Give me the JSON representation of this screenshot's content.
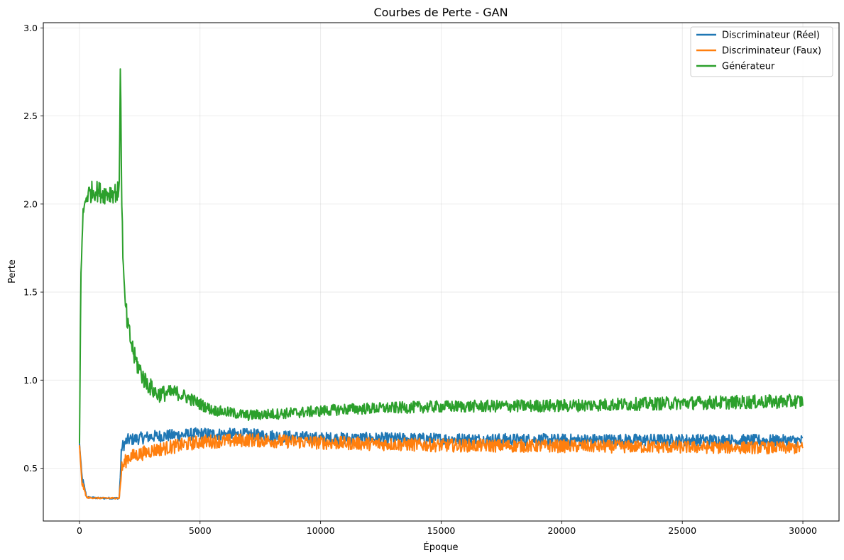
{
  "chart_data": {
    "type": "line",
    "title": "Courbes de Perte - GAN",
    "xlabel": "Époque",
    "ylabel": "Perte",
    "xlim": [
      -1500,
      31500
    ],
    "ylim": [
      0.2,
      3.03
    ],
    "x_ticks": [
      0,
      5000,
      10000,
      15000,
      20000,
      25000,
      30000
    ],
    "x_tick_labels": [
      "0",
      "5000",
      "10000",
      "15000",
      "20000",
      "25000",
      "30000"
    ],
    "y_ticks": [
      0.5,
      1.0,
      1.5,
      2.0,
      2.5,
      3.0
    ],
    "y_tick_labels": [
      "0.5",
      "1.0",
      "1.5",
      "2.0",
      "2.5",
      "3.0"
    ],
    "grid": true,
    "legend_position": "top-right",
    "series": [
      {
        "name": "Discriminateur (Réel)",
        "color": "#1f77b4",
        "points": [
          [
            0,
            0.64
          ],
          [
            100,
            0.45
          ],
          [
            300,
            0.335
          ],
          [
            800,
            0.33
          ],
          [
            1650,
            0.33
          ],
          [
            1750,
            0.62
          ],
          [
            2000,
            0.66
          ],
          [
            3000,
            0.68
          ],
          [
            5000,
            0.695
          ],
          [
            7000,
            0.69
          ],
          [
            10000,
            0.67
          ],
          [
            15000,
            0.665
          ],
          [
            20000,
            0.66
          ],
          [
            25000,
            0.66
          ],
          [
            30000,
            0.655
          ]
        ],
        "noise": [
          [
            0,
            0.0
          ],
          [
            100,
            0.02
          ],
          [
            300,
            0.005
          ],
          [
            1650,
            0.005
          ],
          [
            1750,
            0.035
          ],
          [
            30000,
            0.035
          ]
        ]
      },
      {
        "name": "Discriminateur (Faux)",
        "color": "#ff7f0e",
        "points": [
          [
            0,
            0.63
          ],
          [
            100,
            0.42
          ],
          [
            300,
            0.333
          ],
          [
            800,
            0.33
          ],
          [
            1650,
            0.33
          ],
          [
            1750,
            0.5
          ],
          [
            2000,
            0.56
          ],
          [
            3000,
            0.6
          ],
          [
            5000,
            0.65
          ],
          [
            7000,
            0.66
          ],
          [
            10000,
            0.645
          ],
          [
            15000,
            0.63
          ],
          [
            20000,
            0.625
          ],
          [
            25000,
            0.62
          ],
          [
            30000,
            0.615
          ]
        ],
        "noise": [
          [
            0,
            0.0
          ],
          [
            100,
            0.02
          ],
          [
            300,
            0.004
          ],
          [
            1650,
            0.004
          ],
          [
            1750,
            0.04
          ],
          [
            30000,
            0.035
          ]
        ]
      },
      {
        "name": "Générateur",
        "color": "#2ca02c",
        "points": [
          [
            0,
            0.64
          ],
          [
            60,
            1.6
          ],
          [
            150,
            1.95
          ],
          [
            300,
            2.05
          ],
          [
            600,
            2.08
          ],
          [
            1000,
            2.06
          ],
          [
            1650,
            2.07
          ],
          [
            1700,
            2.9
          ],
          [
            1750,
            2.0
          ],
          [
            1850,
            1.5
          ],
          [
            2000,
            1.3
          ],
          [
            2300,
            1.12
          ],
          [
            2700,
            1.0
          ],
          [
            3200,
            0.92
          ],
          [
            4000,
            0.93
          ],
          [
            4500,
            0.9
          ],
          [
            5500,
            0.83
          ],
          [
            7000,
            0.8
          ],
          [
            9000,
            0.815
          ],
          [
            11000,
            0.835
          ],
          [
            15000,
            0.85
          ],
          [
            20000,
            0.855
          ],
          [
            25000,
            0.87
          ],
          [
            30000,
            0.88
          ]
        ],
        "noise": [
          [
            0,
            0.0
          ],
          [
            300,
            0.06
          ],
          [
            1650,
            0.06
          ],
          [
            1800,
            0.07
          ],
          [
            3000,
            0.05
          ],
          [
            5500,
            0.03
          ],
          [
            30000,
            0.04
          ]
        ]
      }
    ]
  }
}
